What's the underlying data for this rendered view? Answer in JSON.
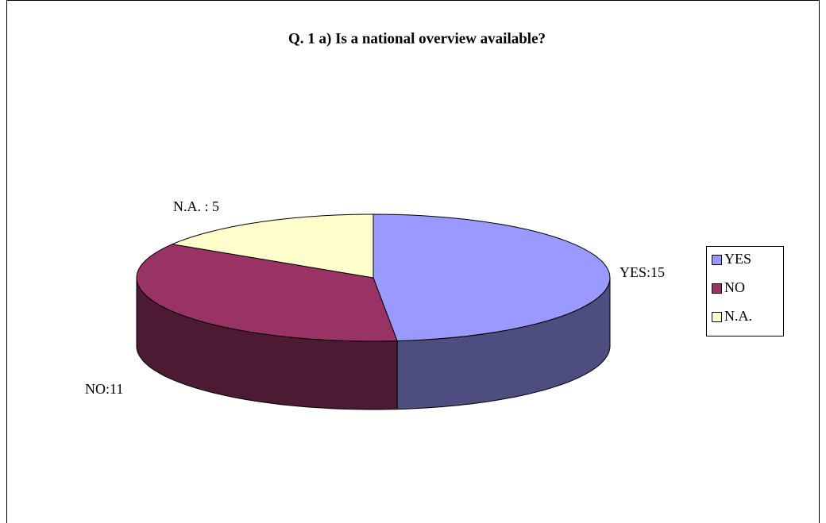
{
  "chart_data": {
    "type": "pie3d",
    "title": "Q. 1 a) Is a national overview available?",
    "categories": [
      "YES",
      "NO",
      "N.A."
    ],
    "values": [
      15,
      11,
      5
    ],
    "value_labels": [
      "YES:15",
      "NO:11",
      "N.A. : 5"
    ],
    "colors": [
      "#9999ff",
      "#993366",
      "#ffffcc"
    ],
    "legend": "right"
  }
}
